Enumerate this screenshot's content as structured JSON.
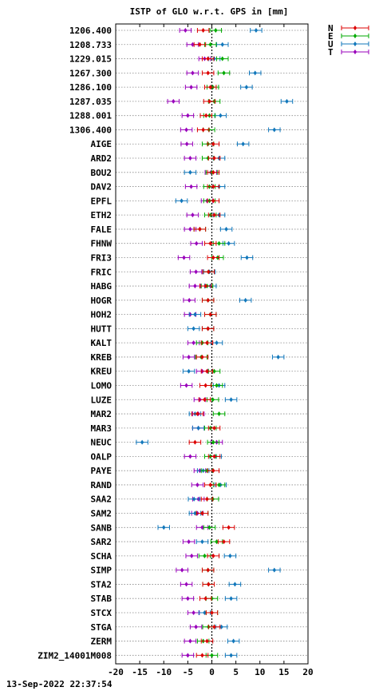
{
  "chart_data": {
    "type": "scatter",
    "title": "ISTP of GLO w.r.t. GPS in [mm]",
    "xlim": [
      -20,
      20
    ],
    "xticks": [
      "-20",
      "-15",
      "-10",
      "-5",
      "0",
      "5",
      "10",
      "15",
      "20"
    ],
    "grid": true,
    "legend_placement": "top-right",
    "colors": {
      "N": "#dd0000",
      "E": "#00aa00",
      "U": "#1177bb",
      "T": "#9900bb"
    },
    "series": [
      {
        "name": "N"
      },
      {
        "name": "E"
      },
      {
        "name": "U"
      },
      {
        "name": "T"
      }
    ],
    "rows": [
      {
        "label": "1206.400",
        "N": -1.8,
        "E": 0.8,
        "U": 9.2,
        "T": -5.5
      },
      {
        "label": "1208.733",
        "N": -2.5,
        "E": -0.3,
        "U": 2.2,
        "T": -4.0
      },
      {
        "label": "1229.015",
        "N": -0.8,
        "E": 2.2,
        "U": 0.5,
        "T": -1.5
      },
      {
        "label": "1267.300",
        "N": -0.8,
        "E": 2.5,
        "U": 9.0,
        "T": -4.0
      },
      {
        "label": "1286.100",
        "N": -0.3,
        "E": 0.2,
        "U": 7.2,
        "T": -4.3
      },
      {
        "label": "1287.035",
        "N": -0.5,
        "E": 0.5,
        "U": 15.6,
        "T": -8.0
      },
      {
        "label": "1288.001",
        "N": -1.2,
        "E": -0.5,
        "U": 1.8,
        "T": -5.0
      },
      {
        "label": "1306.400",
        "N": -1.8,
        "E": -0.6,
        "U": 13.0,
        "T": -5.3
      },
      {
        "label": "AIGE",
        "N": 0.3,
        "E": -0.8,
        "U": 6.5,
        "T": -5.2
      },
      {
        "label": "ARD2",
        "N": 0.5,
        "E": -0.8,
        "U": 1.5,
        "T": -4.5
      },
      {
        "label": "BOU2",
        "N": 0.3,
        "E": 0.0,
        "U": -4.5,
        "T": -0.2
      },
      {
        "label": "DAV2",
        "N": 0.3,
        "E": -0.5,
        "U": 1.5,
        "T": -4.3
      },
      {
        "label": "EPFL",
        "N": 0.3,
        "E": -0.5,
        "U": -6.3,
        "T": -1.0
      },
      {
        "label": "ETH2",
        "N": 0.5,
        "E": -0.3,
        "U": 1.5,
        "T": -4.0
      },
      {
        "label": "FALE",
        "N": -2.5,
        "E": -2.5,
        "U": 3.0,
        "T": -4.5
      },
      {
        "label": "FHNW",
        "N": -0.3,
        "E": 1.5,
        "U": 3.5,
        "T": -3.2
      },
      {
        "label": "FRI3",
        "N": 0.3,
        "E": 1.2,
        "U": 7.3,
        "T": -5.8
      },
      {
        "label": "FRIC",
        "N": -0.7,
        "E": -0.7,
        "U": -0.5,
        "T": -3.3
      },
      {
        "label": "HABG",
        "N": -1.3,
        "E": -1.0,
        "U": -0.3,
        "T": -3.5
      },
      {
        "label": "HOGR",
        "N": -0.8,
        "E": -0.8,
        "U": 7.0,
        "T": -4.7
      },
      {
        "label": "HOH2",
        "N": -0.3,
        "E": -0.3,
        "U": -3.5,
        "T": -4.5
      },
      {
        "label": "HUTT",
        "N": -0.8,
        "E": -0.8,
        "U": -3.8,
        "T": -0.8
      },
      {
        "label": "KALT",
        "N": -1.0,
        "E": -2.0,
        "U": 1.0,
        "T": -3.8
      },
      {
        "label": "KREB",
        "N": -2.0,
        "E": -2.2,
        "U": 13.8,
        "T": -4.8
      },
      {
        "label": "KREU",
        "N": -1.0,
        "E": 0.5,
        "U": -4.8,
        "T": -2.0
      },
      {
        "label": "LOMO",
        "N": -1.3,
        "E": 1.0,
        "U": 1.5,
        "T": -5.3
      },
      {
        "label": "LUZE",
        "N": -1.5,
        "E": 0.2,
        "U": 4.0,
        "T": -2.5
      },
      {
        "label": "MAR2",
        "N": -3.0,
        "E": 1.5,
        "U": -3.5,
        "T": -2.8
      },
      {
        "label": "MAR3",
        "N": 0.5,
        "E": -0.3,
        "U": -2.8,
        "T": -2.8
      },
      {
        "label": "NEUC",
        "N": -3.5,
        "E": 0.3,
        "U": -14.5,
        "T": 1.0
      },
      {
        "label": "OALP",
        "N": 0.5,
        "E": -0.3,
        "U": 0.8,
        "T": -4.5
      },
      {
        "label": "PAYE",
        "N": 0.3,
        "E": -1.0,
        "U": -1.8,
        "T": -2.5
      },
      {
        "label": "RAND",
        "N": -0.3,
        "E": 1.5,
        "U": 1.8,
        "T": -3.0
      },
      {
        "label": "SAA2",
        "N": -1.0,
        "E": 0.2,
        "U": -3.7,
        "T": -2.8
      },
      {
        "label": "SAM2",
        "N": -2.0,
        "E": -2.0,
        "U": -3.5,
        "T": -3.0
      },
      {
        "label": "SANB",
        "N": 3.5,
        "E": -0.5,
        "U": -10.0,
        "T": -2.0
      },
      {
        "label": "SAR2",
        "N": 2.5,
        "E": 1.0,
        "U": -2.0,
        "T": -4.8
      },
      {
        "label": "SCHA",
        "N": 0.3,
        "E": -1.5,
        "U": 3.8,
        "T": -4.2
      },
      {
        "label": "SIMP",
        "N": -0.8,
        "E": -0.8,
        "U": 13.0,
        "T": -6.2
      },
      {
        "label": "STA2",
        "N": -0.7,
        "E": -0.7,
        "U": 4.8,
        "T": -5.3
      },
      {
        "label": "STAB",
        "N": -1.3,
        "E": 0.0,
        "U": 4.0,
        "T": -5.0
      },
      {
        "label": "STCX",
        "N": 0.0,
        "E": 0.0,
        "U": -1.5,
        "T": -3.8
      },
      {
        "label": "STGA",
        "N": 0.5,
        "E": -0.7,
        "U": 2.0,
        "T": -3.3
      },
      {
        "label": "ZERM",
        "N": -1.0,
        "E": -1.8,
        "U": 4.5,
        "T": -4.5
      },
      {
        "label": "ZIM2_14001M008",
        "N": -2.0,
        "E": 0.0,
        "U": 4.0,
        "T": -5.0
      }
    ]
  },
  "footer": {
    "timestamp": "13-Sep-2022 22:37:54"
  }
}
